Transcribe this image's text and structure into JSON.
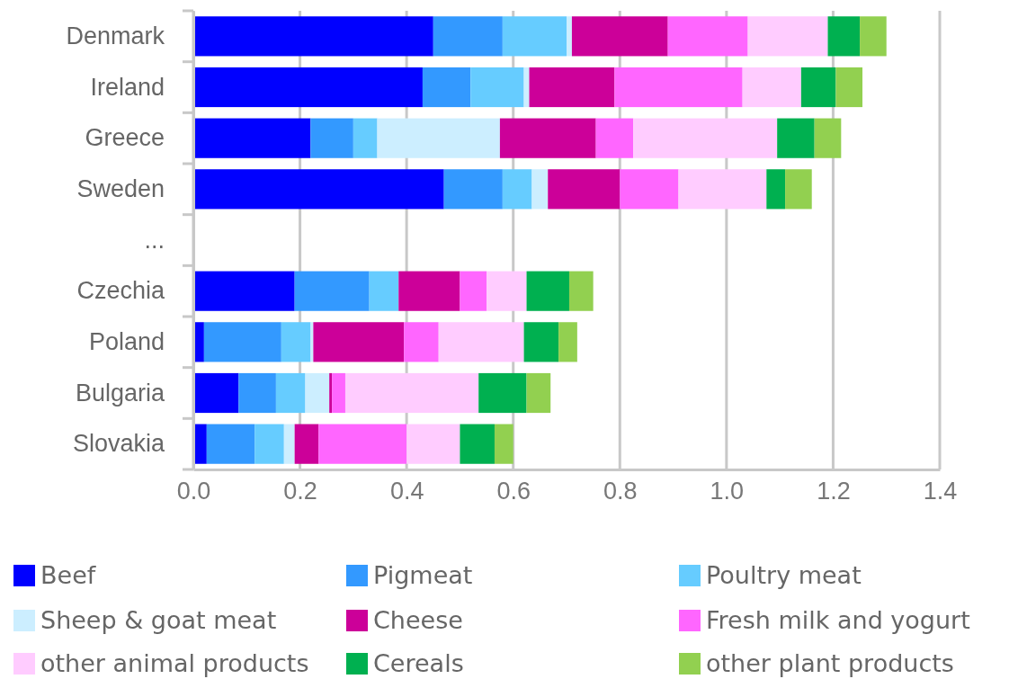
{
  "chart_data": {
    "type": "bar",
    "orientation": "horizontal",
    "stacked": true,
    "categories": [
      "Denmark",
      "Ireland",
      "Greece",
      "Sweden",
      "...",
      "Czechia",
      "Poland",
      "Bulgaria",
      "Slovakia"
    ],
    "series": [
      {
        "name": "Beef",
        "color": "#0000ff",
        "values": [
          0.45,
          0.43,
          0.22,
          0.47,
          null,
          0.19,
          0.02,
          0.085,
          0.025
        ]
      },
      {
        "name": "Pigmeat",
        "color": "#3399ff",
        "values": [
          0.13,
          0.09,
          0.08,
          0.11,
          null,
          0.14,
          0.145,
          0.07,
          0.09
        ]
      },
      {
        "name": "Poultry meat",
        "color": "#66ccff",
        "values": [
          0.12,
          0.1,
          0.045,
          0.055,
          null,
          0.055,
          0.055,
          0.055,
          0.055
        ]
      },
      {
        "name": "Sheep & goat meat",
        "color": "#cceeff",
        "values": [
          0.01,
          0.01,
          0.23,
          0.03,
          null,
          0,
          0.005,
          0.045,
          0.02
        ]
      },
      {
        "name": "Cheese",
        "color": "#cc0099",
        "values": [
          0.18,
          0.16,
          0.18,
          0.135,
          null,
          0.115,
          0.17,
          0.005,
          0.045
        ]
      },
      {
        "name": "Fresh milk and yogurt",
        "color": "#ff66ff",
        "values": [
          0.15,
          0.24,
          0.07,
          0.11,
          null,
          0.05,
          0.065,
          0.025,
          0.165
        ]
      },
      {
        "name": "other animal products",
        "color": "#ffccff",
        "values": [
          0.15,
          0.11,
          0.27,
          0.165,
          null,
          0.075,
          0.16,
          0.25,
          0.1
        ]
      },
      {
        "name": "Cereals",
        "color": "#00b050",
        "values": [
          0.06,
          0.065,
          0.07,
          0.035,
          null,
          0.08,
          0.065,
          0.09,
          0.065
        ]
      },
      {
        "name": "other plant products",
        "color": "#92d050",
        "values": [
          0.05,
          0.05,
          0.05,
          0.05,
          null,
          0.045,
          0.035,
          0.045,
          0.035
        ]
      }
    ],
    "xlim": [
      0,
      1.4
    ],
    "xticks": [
      {
        "value": 0,
        "label": "0.0"
      },
      0.2,
      0.4,
      0.6,
      0.8,
      {
        "value": 1,
        "label": "1.0"
      },
      1.2,
      1.4
    ],
    "grid": "x",
    "legend": "bottom"
  }
}
